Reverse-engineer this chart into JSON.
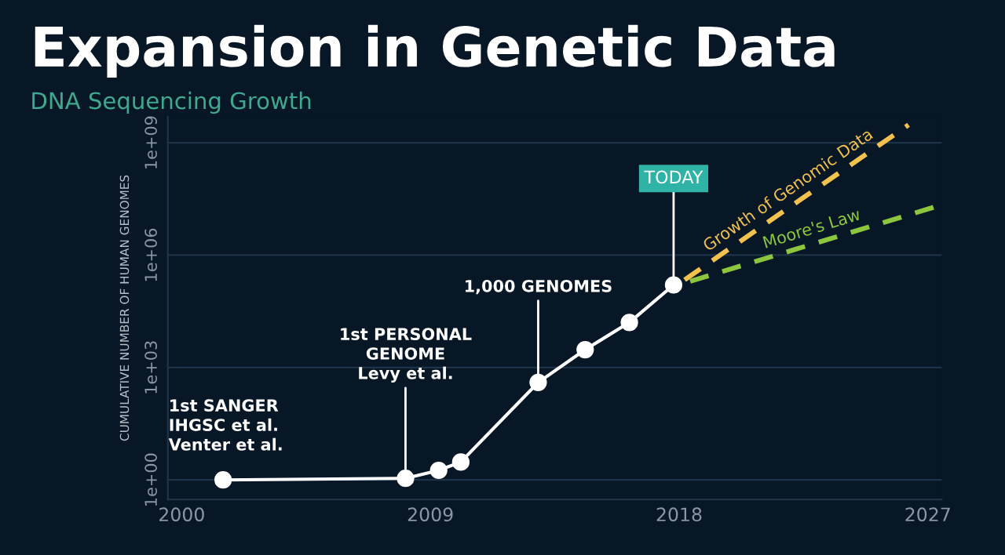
{
  "chart_data": {
    "type": "line",
    "title": "Expansion in Genetic Data",
    "subtitle": "DNA Sequencing Growth",
    "ylabel": "CUMULATIVE NUMBER OF HUMAN GENOMES",
    "log": "y",
    "grid": "y",
    "legend": false,
    "xlim": [
      1999.5,
      2027.5
    ],
    "xticks": [
      2000,
      2009,
      2018,
      2027
    ],
    "ylim": [
      0.3,
      5000000000
    ],
    "yticks": [
      {
        "value": 1,
        "label": "1e+00"
      },
      {
        "value": 1000,
        "label": "1e+03"
      },
      {
        "value": 1000000,
        "label": "1e+06"
      },
      {
        "value": 1000000000,
        "label": "1e+09"
      }
    ],
    "series": [
      {
        "color": "#ffffff",
        "marker": "circle",
        "line_style": "solid",
        "x": [
          2001.5,
          2008.1,
          2009.3,
          2010.1,
          2012.9,
          2014.6,
          2016.2,
          2017.8
        ],
        "values": [
          1,
          1.1,
          1.8,
          3,
          400,
          3000,
          16000,
          160000
        ]
      },
      {
        "name": "Growth of Genomic Data",
        "color": "#f2c14e",
        "marker": "none",
        "line_style": "dashed",
        "x": [
          2018.2,
          2026.3
        ],
        "values": [
          220000,
          3000000000
        ]
      },
      {
        "name": "Moore's Law",
        "color": "#8cc63f",
        "marker": "none",
        "line_style": "dashed",
        "x": [
          2018.4,
          2027.5
        ],
        "values": [
          200000,
          22000000
        ]
      }
    ],
    "annotations": [
      {
        "text": "1st SANGER\nIHGSC et al.\nVenter et al.",
        "x": 2001.5,
        "y": 1
      },
      {
        "text": "1st PERSONAL\nGENOME\nLevy et al.",
        "x": 2008.1,
        "y": 1.1
      },
      {
        "text": "1,000 GENOMES",
        "x": 2012.9,
        "y": 400
      },
      {
        "text": "TODAY",
        "x": 2017.8,
        "y": 160000
      }
    ]
  }
}
